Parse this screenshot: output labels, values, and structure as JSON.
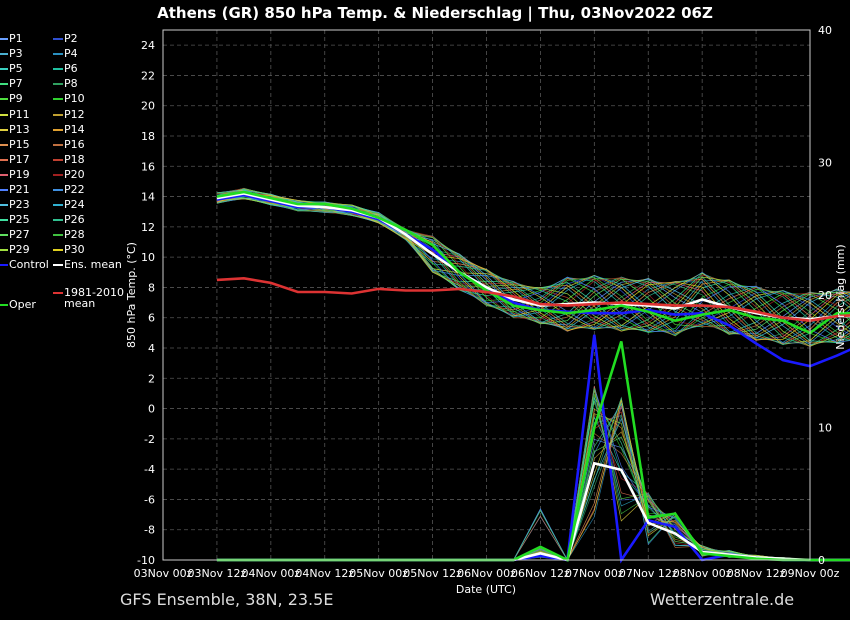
{
  "chart_data": {
    "type": "line",
    "title": "Athens  (GR)  850 hPa Temp. & Niederschlag | Thu, 03Nov2022 06Z",
    "xlabel": "Date (UTC)",
    "ylabel": "850 hPa Temp. (°C)",
    "y2label": "Niederschlag (mm)",
    "x": [
      "03Nov 00z",
      "03Nov 12z",
      "04Nov 00z",
      "04Nov 12z",
      "05Nov 00z",
      "05Nov 12z",
      "06Nov 00z",
      "06Nov 12z",
      "07Nov 00z",
      "07Nov 12z",
      "08Nov 00z",
      "08Nov 12z",
      "09Nov 00z"
    ],
    "ylim": [
      -10,
      25
    ],
    "yticks": [
      -10,
      -8,
      -6,
      -4,
      -2,
      0,
      2,
      4,
      6,
      8,
      10,
      12,
      14,
      16,
      18,
      20,
      22,
      24
    ],
    "y2lim": [
      0,
      40
    ],
    "y2ticks": [
      0,
      10,
      20,
      30,
      40
    ],
    "grid": true,
    "legend_position": "left",
    "temp_series": [
      {
        "name": "Control",
        "color": "#1a1aff",
        "values": [
          13.8,
          14.1,
          13.7,
          13.3,
          13.3,
          13.0,
          12.5,
          11.5,
          10.5,
          9.0,
          8.0,
          7.0,
          6.5,
          6.4,
          6.3,
          6.3,
          6.5,
          6.2,
          6.3,
          5.5,
          4.3,
          3.2,
          2.8,
          3.5,
          4.3
        ]
      },
      {
        "name": "Ens. mean",
        "color": "#ffffff",
        "values": [
          13.9,
          14.2,
          13.8,
          13.4,
          13.3,
          13.1,
          12.6,
          11.5,
          10.2,
          9.0,
          8.0,
          7.2,
          6.8,
          6.9,
          7.0,
          6.9,
          6.8,
          6.6,
          7.2,
          6.7,
          6.3,
          6.0,
          5.9,
          6.1,
          6.1
        ]
      },
      {
        "name": "Oper",
        "color": "#22dd22",
        "values": [
          14.0,
          14.3,
          13.9,
          13.5,
          13.5,
          13.2,
          12.6,
          11.8,
          10.8,
          9.0,
          7.8,
          6.8,
          6.5,
          6.3,
          6.5,
          6.8,
          6.4,
          5.8,
          6.2,
          6.5,
          6.0,
          5.8,
          5.0,
          6.3,
          6.3
        ]
      },
      {
        "name": "1981-2010 mean",
        "color": "#dd3333",
        "values": [
          8.5,
          8.6,
          8.3,
          7.7,
          7.7,
          7.6,
          7.9,
          7.8,
          7.8,
          7.9,
          7.7,
          7.4,
          6.9,
          6.8,
          6.9,
          7.0,
          6.9,
          6.8,
          6.8,
          6.7,
          6.4,
          6.0,
          5.8,
          6.1,
          6.2
        ]
      }
    ],
    "precip_series": [
      {
        "name": "Control",
        "color": "#1a1aff",
        "values": [
          0,
          0,
          0,
          0,
          0,
          0,
          0,
          0,
          0,
          0,
          0,
          0,
          0.3,
          0,
          17.0,
          0,
          3.0,
          2.5,
          0,
          0.4,
          0.2,
          0,
          0,
          0,
          0
        ]
      },
      {
        "name": "Ens. mean",
        "color": "#ffffff",
        "values": [
          0,
          0,
          0,
          0,
          0,
          0,
          0,
          0,
          0,
          0,
          0,
          0,
          0.5,
          0,
          7.3,
          6.8,
          2.8,
          2.0,
          0.6,
          0.4,
          0.2,
          0.1,
          0,
          0,
          0
        ]
      },
      {
        "name": "Oper",
        "color": "#22dd22",
        "values": [
          0,
          0,
          0,
          0,
          0,
          0,
          0,
          0,
          0,
          0,
          0,
          0,
          1.0,
          0,
          10.0,
          16.5,
          3.2,
          3.5,
          0.5,
          0.3,
          0.1,
          0,
          0,
          0,
          0
        ]
      }
    ],
    "members": [
      "P1",
      "P2",
      "P3",
      "P4",
      "P5",
      "P6",
      "P7",
      "P8",
      "P9",
      "P10",
      "P11",
      "P12",
      "P13",
      "P14",
      "P15",
      "P16",
      "P17",
      "P18",
      "P19",
      "P20",
      "P21",
      "P22",
      "P23",
      "P24",
      "P25",
      "P26",
      "P27",
      "P28",
      "P29",
      "P30"
    ],
    "member_colors": [
      "#6aa0ff",
      "#3050d0",
      "#4ab0d0",
      "#2a90c0",
      "#3ad0c0",
      "#20c0a0",
      "#40e080",
      "#30a060",
      "#50e040",
      "#30d030",
      "#d0e040",
      "#c0a030",
      "#e0d040",
      "#e0a030",
      "#e09050",
      "#c07040",
      "#e07050",
      "#c04030",
      "#e06070",
      "#a02020",
      "#5080ff",
      "#4090e0",
      "#50c0e0",
      "#30b0d0",
      "#40e0a0",
      "#30c090",
      "#60e060",
      "#40c040",
      "#a0e040",
      "#e0d020"
    ],
    "legend": {
      "members": [
        "P1",
        "P2",
        "P3",
        "P4",
        "P5",
        "P6",
        "P7",
        "P8",
        "P9",
        "P10",
        "P11",
        "P12",
        "P13",
        "P14",
        "P15",
        "P16",
        "P17",
        "P18",
        "P19",
        "P20",
        "P21",
        "P22",
        "P23",
        "P24",
        "P25",
        "P26",
        "P27",
        "P28",
        "P29",
        "P30"
      ],
      "control": "Control",
      "ens_mean": "Ens. mean",
      "clim_line1": "1981-2010",
      "clim_line2": "mean",
      "oper": "Oper"
    }
  },
  "footer": {
    "left": "GFS Ensemble, 38N, 23.5E",
    "right": "Wetterzentrale.de"
  }
}
